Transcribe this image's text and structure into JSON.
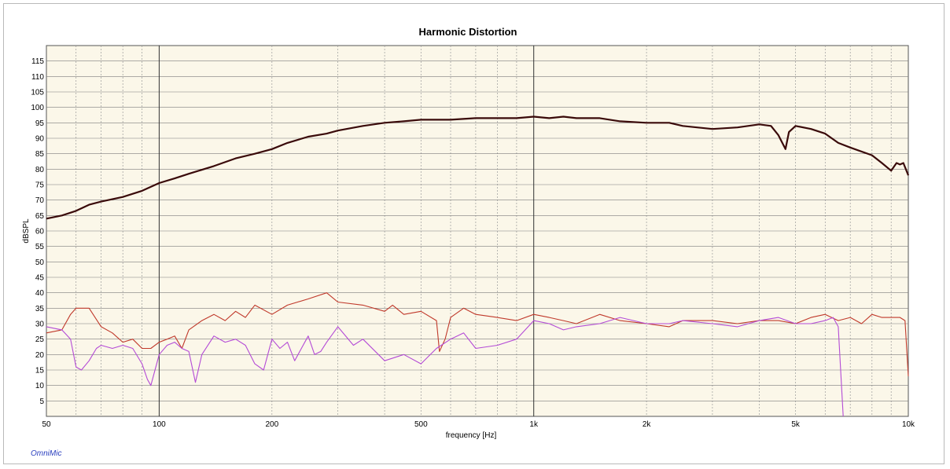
{
  "app": {
    "brand": "OmniMic"
  },
  "chart_data": {
    "type": "line",
    "title": "Harmonic Distortion",
    "xlabel": "frequency [Hz]",
    "ylabel": "dBSPL",
    "xscale": "log",
    "xlim": [
      50,
      10000
    ],
    "ylim": [
      0,
      120
    ],
    "grid": true,
    "legend": "none",
    "x_ticks": [
      {
        "value": 50,
        "label": "50"
      },
      {
        "value": 100,
        "label": "100"
      },
      {
        "value": 200,
        "label": "200"
      },
      {
        "value": 500,
        "label": "500"
      },
      {
        "value": 1000,
        "label": "1k"
      },
      {
        "value": 2000,
        "label": "2k"
      },
      {
        "value": 5000,
        "label": "5k"
      },
      {
        "value": 10000,
        "label": "10k"
      }
    ],
    "y_ticks": [
      5,
      10,
      15,
      20,
      25,
      30,
      35,
      40,
      45,
      50,
      55,
      60,
      65,
      70,
      75,
      80,
      85,
      90,
      95,
      100,
      105,
      110,
      115
    ],
    "series": [
      {
        "color": "#3a0a0a",
        "x": [
          50,
          55,
          60,
          65,
          70,
          80,
          90,
          100,
          110,
          120,
          140,
          160,
          180,
          200,
          220,
          250,
          280,
          300,
          350,
          400,
          450,
          500,
          550,
          600,
          700,
          800,
          900,
          1000,
          1100,
          1200,
          1300,
          1500,
          1700,
          2000,
          2300,
          2500,
          3000,
          3500,
          4000,
          4300,
          4500,
          4700,
          4800,
          5000,
          5500,
          6000,
          6500,
          7000,
          8000,
          8500,
          9000,
          9300,
          9500,
          9700,
          10000
        ],
        "y": [
          64,
          65,
          66.5,
          68.5,
          69.5,
          71,
          73,
          75.5,
          77,
          78.5,
          81,
          83.5,
          85,
          86.5,
          88.5,
          90.5,
          91.5,
          92.5,
          94,
          95,
          95.5,
          96,
          96,
          96,
          96.5,
          96.5,
          96.5,
          97,
          96.5,
          97,
          96.5,
          96.5,
          95.5,
          95,
          95,
          94,
          93,
          93.5,
          94.5,
          94,
          91,
          86.5,
          92,
          94,
          93,
          91.5,
          88.5,
          87,
          84.5,
          82,
          79.5,
          82,
          81.5,
          82,
          78
        ]
      },
      {
        "color": "#c0392b",
        "x": [
          50,
          55,
          58,
          60,
          62,
          65,
          70,
          75,
          80,
          85,
          90,
          95,
          100,
          105,
          110,
          115,
          120,
          130,
          140,
          150,
          160,
          170,
          180,
          200,
          220,
          250,
          280,
          300,
          350,
          400,
          420,
          450,
          500,
          550,
          560,
          580,
          600,
          650,
          700,
          800,
          900,
          1000,
          1100,
          1200,
          1300,
          1500,
          1700,
          2000,
          2300,
          2500,
          3000,
          3500,
          4000,
          4500,
          5000,
          5500,
          6000,
          6500,
          7000,
          7500,
          8000,
          8500,
          9000,
          9500,
          9800,
          10000
        ],
        "y": [
          27,
          28,
          33,
          35,
          35,
          35,
          29,
          27,
          24,
          25,
          22,
          22,
          24,
          25,
          26,
          22,
          28,
          31,
          33,
          31,
          34,
          32,
          36,
          33,
          36,
          38,
          40,
          37,
          36,
          34,
          36,
          33,
          34,
          31,
          21,
          25,
          32,
          35,
          33,
          32,
          31,
          33,
          32,
          31,
          30,
          33,
          31,
          30,
          29,
          31,
          31,
          30,
          31,
          31,
          30,
          32,
          33,
          31,
          32,
          30,
          33,
          32,
          32,
          32,
          31,
          13
        ]
      },
      {
        "color": "#b44bd6",
        "x": [
          50,
          55,
          58,
          60,
          62,
          65,
          68,
          70,
          75,
          80,
          85,
          90,
          93,
          95,
          100,
          105,
          110,
          115,
          120,
          125,
          130,
          140,
          150,
          160,
          170,
          180,
          190,
          200,
          210,
          220,
          230,
          250,
          260,
          270,
          280,
          300,
          330,
          350,
          400,
          450,
          500,
          550,
          600,
          650,
          700,
          800,
          900,
          1000,
          1100,
          1200,
          1300,
          1500,
          1700,
          2000,
          2300,
          2500,
          3000,
          3500,
          4000,
          4500,
          5000,
          5500,
          6000,
          6300,
          6500,
          6700
        ],
        "y": [
          29,
          28,
          25,
          16,
          15,
          18,
          22,
          23,
          22,
          23,
          22,
          17,
          12,
          10,
          20,
          23,
          24,
          22,
          21,
          11,
          20,
          26,
          24,
          25,
          23,
          17,
          15,
          25,
          22,
          24,
          18,
          26,
          20,
          21,
          24,
          29,
          23,
          25,
          18,
          20,
          17,
          22,
          25,
          27,
          22,
          23,
          25,
          31,
          30,
          28,
          29,
          30,
          32,
          30,
          30,
          31,
          30,
          29,
          31,
          32,
          30,
          30,
          31,
          32,
          29,
          0
        ]
      }
    ]
  }
}
